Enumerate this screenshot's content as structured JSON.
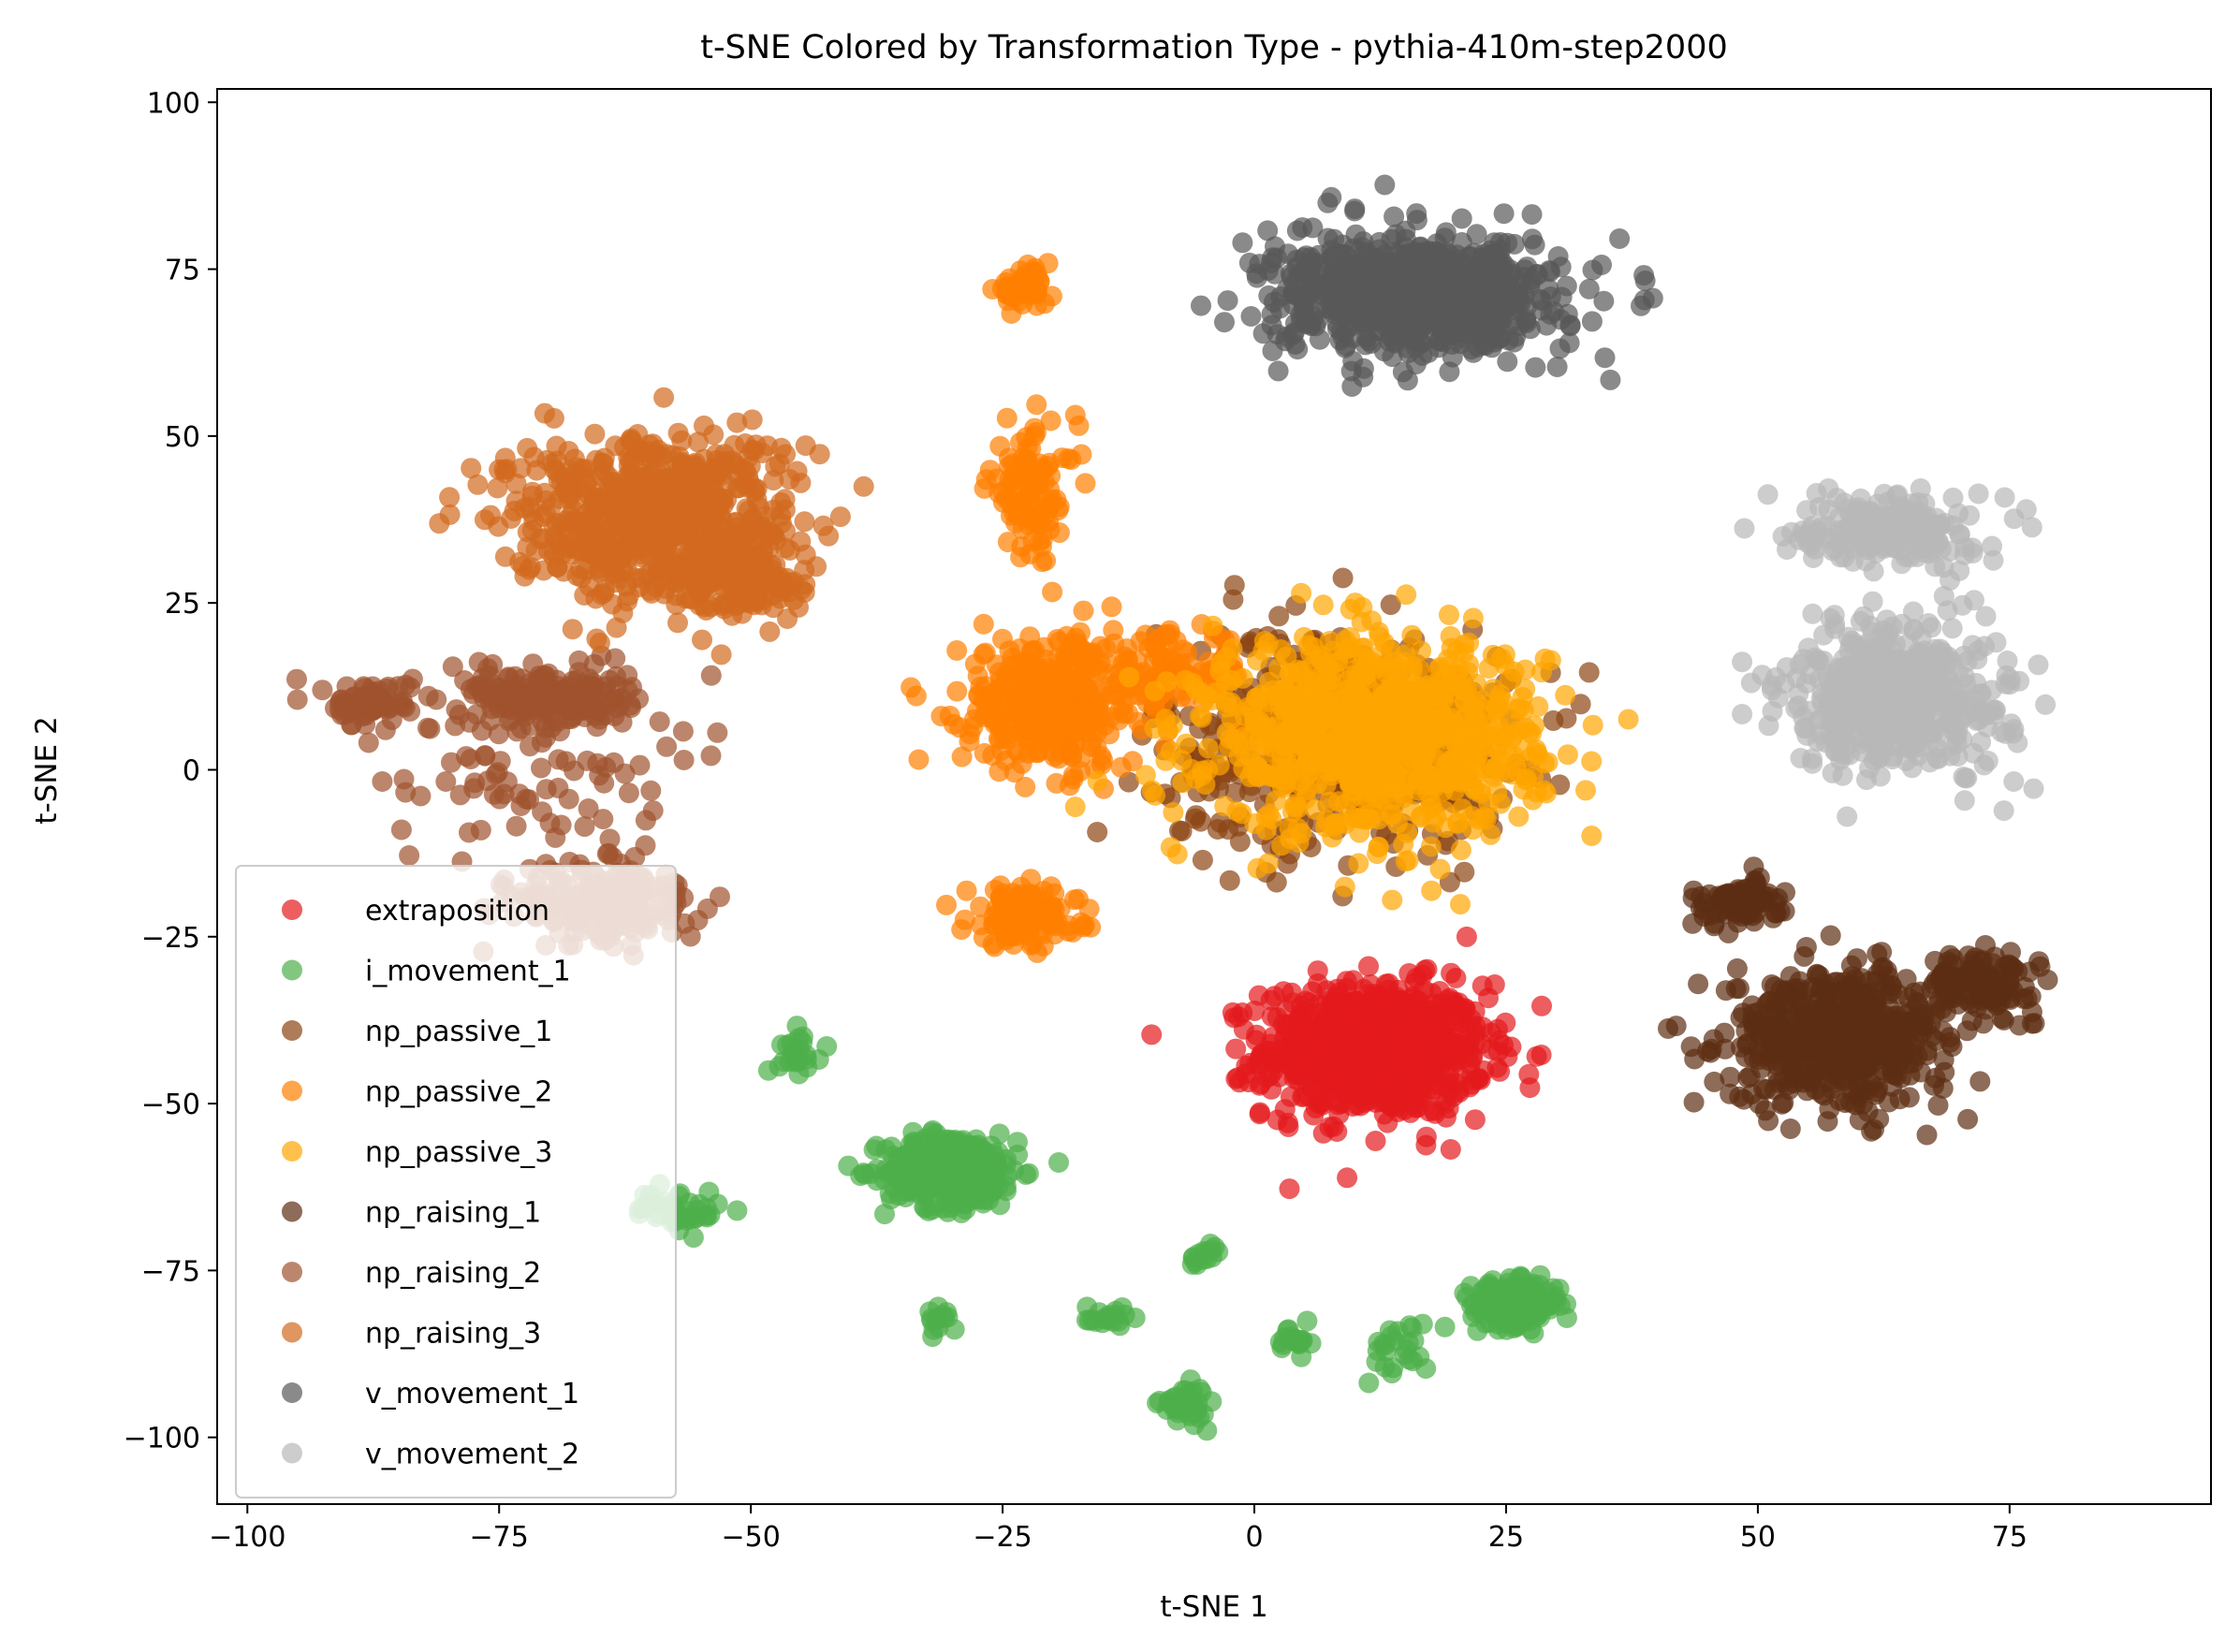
{
  "chart_data": {
    "type": "scatter",
    "title": "t-SNE Colored by Transformation Type - pythia-410m-step2000",
    "xlabel": "t-SNE 1",
    "ylabel": "t-SNE 2",
    "xlim": [
      -103,
      95
    ],
    "ylim": [
      -110,
      102
    ],
    "xticks": [
      -100,
      -75,
      -50,
      -25,
      0,
      25,
      50,
      75
    ],
    "xtick_labels": [
      "−100",
      "−75",
      "−50",
      "−25",
      "0",
      "25",
      "50",
      "75"
    ],
    "yticks": [
      -100,
      -75,
      -50,
      -25,
      0,
      25,
      50,
      75,
      100
    ],
    "ytick_labels": [
      "−100",
      "−75",
      "−50",
      "−25",
      "0",
      "25",
      "50",
      "75",
      "100"
    ],
    "grid": false,
    "legend_position": "lower-left",
    "point_alpha": 0.7,
    "series": [
      {
        "name": "extraposition",
        "color": "#e41a1c",
        "clusters": [
          {
            "center": [
              12,
              -42
            ],
            "spread": [
              10,
              9
            ],
            "n": 900
          }
        ]
      },
      {
        "name": "i_movement_1",
        "color": "#4daf4a",
        "clusters": [
          {
            "center": [
              -30,
              -60
            ],
            "spread": [
              6,
              5
            ],
            "n": 350
          },
          {
            "center": [
              26,
              -80
            ],
            "spread": [
              4,
              3
            ],
            "n": 200
          },
          {
            "center": [
              -7,
              -95
            ],
            "spread": [
              2,
              2.5
            ],
            "n": 50
          },
          {
            "center": [
              -45,
              -42
            ],
            "spread": [
              2,
              3
            ],
            "n": 25
          },
          {
            "center": [
              -15,
              -82
            ],
            "spread": [
              2,
              2
            ],
            "n": 20
          },
          {
            "center": [
              -5,
              -73
            ],
            "spread": [
              2,
              1.5
            ],
            "n": 15
          },
          {
            "center": [
              4,
              -86
            ],
            "spread": [
              1.5,
              2.5
            ],
            "n": 20
          },
          {
            "center": [
              -31,
              -82
            ],
            "spread": [
              1.5,
              2
            ],
            "n": 15
          },
          {
            "center": [
              14,
              -87
            ],
            "spread": [
              3,
              4
            ],
            "n": 25
          },
          {
            "center": [
              -57,
              -66
            ],
            "spread": [
              4,
              3
            ],
            "n": 40
          }
        ]
      },
      {
        "name": "np_passive_1",
        "color": "#8b4513",
        "clusters": [
          {
            "center": [
              8,
              5
            ],
            "spread": [
              16,
              15
            ],
            "n": 500
          }
        ]
      },
      {
        "name": "np_passive_2",
        "color": "#ff7f00",
        "clusters": [
          {
            "center": [
              -20,
              10
            ],
            "spread": [
              8,
              9
            ],
            "n": 400
          },
          {
            "center": [
              -23,
              -22
            ],
            "spread": [
              5,
              4
            ],
            "n": 150
          },
          {
            "center": [
              -22,
              42
            ],
            "spread": [
              4,
              9
            ],
            "n": 100
          },
          {
            "center": [
              -23,
              72
            ],
            "spread": [
              2.5,
              2.5
            ],
            "n": 50
          },
          {
            "center": [
              -8,
              15
            ],
            "spread": [
              7,
              5
            ],
            "n": 100
          }
        ]
      },
      {
        "name": "np_passive_3",
        "color": "#ffa500",
        "clusters": [
          {
            "center": [
              12,
              5
            ],
            "spread": [
              15,
              13
            ],
            "n": 900
          }
        ]
      },
      {
        "name": "np_raising_1",
        "color": "#5c2e12",
        "clusters": [
          {
            "center": [
              58,
              -40
            ],
            "spread": [
              10,
              9
            ],
            "n": 550
          },
          {
            "center": [
              72,
              -32
            ],
            "spread": [
              5,
              4
            ],
            "n": 120
          },
          {
            "center": [
              48,
              -20
            ],
            "spread": [
              4,
              3
            ],
            "n": 100
          }
        ]
      },
      {
        "name": "np_raising_2",
        "color": "#a0522d",
        "clusters": [
          {
            "center": [
              -70,
              11
            ],
            "spread": [
              7,
              4
            ],
            "n": 200
          },
          {
            "center": [
              -88,
              10
            ],
            "spread": [
              4,
              3
            ],
            "n": 80
          },
          {
            "center": [
              -64,
              -20
            ],
            "spread": [
              8,
              6
            ],
            "n": 200
          },
          {
            "center": [
              -72,
              0
            ],
            "spread": [
              12,
              14
            ],
            "n": 100
          }
        ]
      },
      {
        "name": "np_raising_3",
        "color": "#d2691e",
        "clusters": [
          {
            "center": [
              -60,
              38
            ],
            "spread": [
              13,
              11
            ],
            "n": 700
          },
          {
            "center": [
              -50,
              28
            ],
            "spread": [
              6,
              6
            ],
            "n": 100
          }
        ]
      },
      {
        "name": "v_movement_1",
        "color": "#595959",
        "clusters": [
          {
            "center": [
              16,
              71
            ],
            "spread": [
              13,
              8
            ],
            "n": 800
          }
        ]
      },
      {
        "name": "v_movement_2",
        "color": "#b8b8b8",
        "clusters": [
          {
            "center": [
              63,
              36
            ],
            "spread": [
              8,
              5
            ],
            "n": 200
          },
          {
            "center": [
              64,
              11
            ],
            "spread": [
              10,
              10
            ],
            "n": 500
          }
        ]
      }
    ]
  }
}
